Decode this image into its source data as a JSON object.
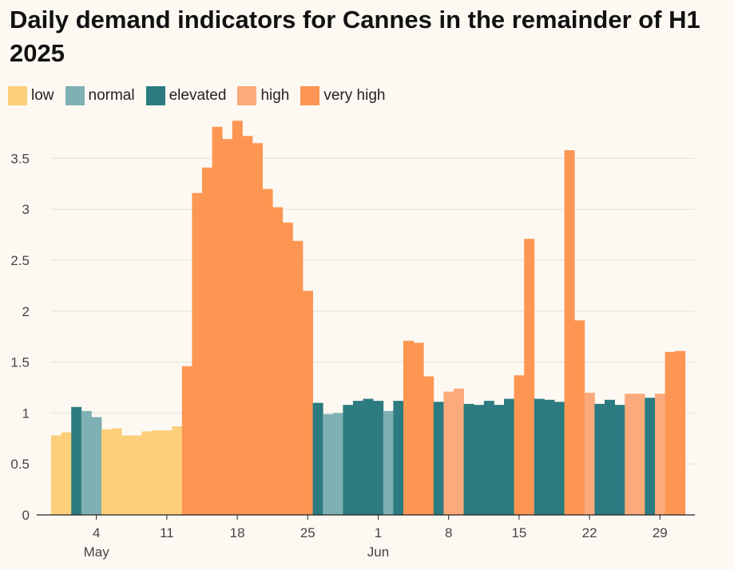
{
  "chart_data": {
    "type": "bar",
    "title": "Daily demand indicators for Cannes in the remainder of H1 2025",
    "xlabel": "",
    "ylabel": "",
    "ylim": [
      0,
      3.9
    ],
    "yticks": [
      0,
      0.5,
      1,
      1.5,
      2,
      2.5,
      3,
      3.5
    ],
    "ytick_labels": [
      "0",
      "0.5",
      "1",
      "1.5",
      "2",
      "2.5",
      "3",
      "3.5"
    ],
    "legend": [
      {
        "key": "low",
        "label": "low",
        "color": "#fdcf7a"
      },
      {
        "key": "normal",
        "label": "normal",
        "color": "#7fb0b3"
      },
      {
        "key": "elevated",
        "label": "elevated",
        "color": "#2b7b80"
      },
      {
        "key": "high",
        "label": "high",
        "color": "#fbaa7b"
      },
      {
        "key": "very_high",
        "label": "very high",
        "color": "#fd9652"
      }
    ],
    "x_start_date": "2025-04-30",
    "xticks": [
      {
        "day_index": 4,
        "label": "4"
      },
      {
        "day_index": 11,
        "label": "11"
      },
      {
        "day_index": 18,
        "label": "18"
      },
      {
        "day_index": 25,
        "label": "25"
      },
      {
        "day_index": 32,
        "label": "1"
      },
      {
        "day_index": 39,
        "label": "8"
      },
      {
        "day_index": 46,
        "label": "15"
      },
      {
        "day_index": 53,
        "label": "22"
      },
      {
        "day_index": 60,
        "label": "29"
      }
    ],
    "months": [
      {
        "day_index": 4,
        "label": "May"
      },
      {
        "day_index": 32,
        "label": "Jun"
      }
    ],
    "values": [
      0.78,
      0.81,
      1.06,
      1.02,
      0.96,
      0.84,
      0.85,
      0.78,
      0.78,
      0.82,
      0.83,
      0.83,
      0.87,
      1.46,
      3.16,
      3.41,
      3.81,
      3.69,
      3.87,
      3.72,
      3.65,
      3.2,
      3.02,
      2.87,
      2.69,
      2.2,
      1.1,
      0.99,
      1.0,
      1.08,
      1.12,
      1.14,
      1.12,
      1.02,
      1.12,
      1.71,
      1.69,
      1.36,
      1.11,
      1.21,
      1.24,
      1.09,
      1.08,
      1.12,
      1.08,
      1.14,
      1.37,
      2.71,
      1.14,
      1.13,
      1.11,
      3.58,
      1.91,
      1.2,
      1.09,
      1.13,
      1.08,
      1.19,
      1.19,
      1.15,
      1.19,
      1.6,
      1.61
    ],
    "levels": [
      "low",
      "low",
      "elevated",
      "normal",
      "normal",
      "low",
      "low",
      "low",
      "low",
      "low",
      "low",
      "low",
      "low",
      "very_high",
      "very_high",
      "very_high",
      "very_high",
      "very_high",
      "very_high",
      "very_high",
      "very_high",
      "very_high",
      "very_high",
      "very_high",
      "very_high",
      "very_high",
      "elevated",
      "normal",
      "normal",
      "elevated",
      "elevated",
      "elevated",
      "elevated",
      "normal",
      "elevated",
      "very_high",
      "very_high",
      "very_high",
      "elevated",
      "high",
      "high",
      "elevated",
      "elevated",
      "elevated",
      "elevated",
      "elevated",
      "very_high",
      "very_high",
      "elevated",
      "elevated",
      "elevated",
      "very_high",
      "very_high",
      "high",
      "elevated",
      "elevated",
      "elevated",
      "high",
      "high",
      "elevated",
      "high",
      "very_high",
      "very_high"
    ]
  }
}
